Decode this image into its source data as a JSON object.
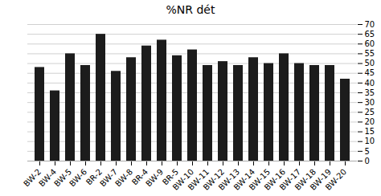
{
  "chart_data": {
    "type": "bar",
    "title": "%NR dét",
    "categories": [
      "BW-2",
      "BW-4",
      "BW-5",
      "BW-6",
      "BR-2",
      "BW-7",
      "BW-8",
      "BR-4",
      "BW-9",
      "BR-5",
      "BW-10",
      "BW-11",
      "BW-12",
      "BW-13",
      "BW-14",
      "BW-15",
      "BW-16",
      "BW-17",
      "BW-18",
      "BW-19",
      "BW-20"
    ],
    "values": [
      48,
      36,
      55,
      49,
      65,
      46,
      53,
      59,
      62,
      54,
      57,
      49,
      51,
      49,
      53,
      50,
      55,
      50,
      49,
      49,
      42
    ],
    "color": "#1c1c1c",
    "ylim": [
      0,
      70
    ],
    "yticks": [
      0,
      5,
      10,
      15,
      20,
      25,
      30,
      35,
      40,
      45,
      50,
      55,
      60,
      65,
      70
    ],
    "grid": true
  }
}
